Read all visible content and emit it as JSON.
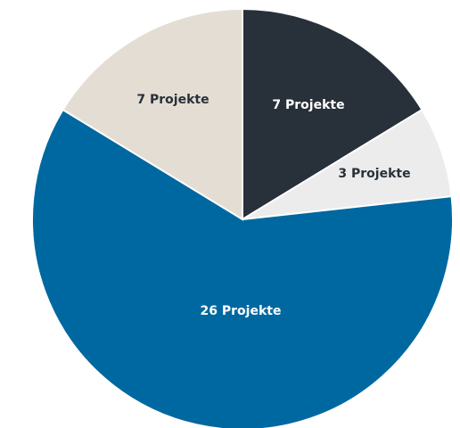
{
  "chart_data": {
    "type": "pie",
    "title": "",
    "unit": "Projekte",
    "start": "12 o'clock",
    "direction": "clockwise",
    "slices": [
      {
        "value": 7,
        "label": "7 Projekte",
        "color": "#28303a",
        "label_color": "#ffffff"
      },
      {
        "value": 3,
        "label": "3 Projekte",
        "color": "#ececec",
        "label_color": "#28303a"
      },
      {
        "value": 26,
        "label": "26 Projekte",
        "color": "#0068a0",
        "label_color": "#ffffff"
      },
      {
        "value": 7,
        "label": "7 Projekte",
        "color": "#e4ddd3",
        "label_color": "#28303a"
      }
    ]
  }
}
